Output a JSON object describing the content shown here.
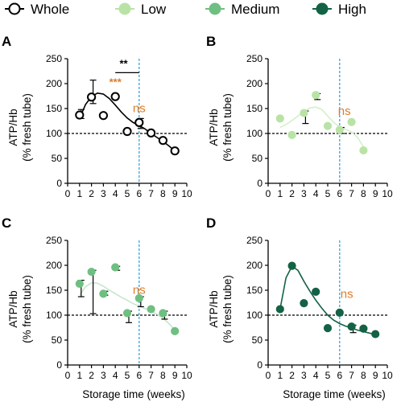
{
  "legend": [
    {
      "label": "Whole",
      "color": "#000000",
      "hollow": true
    },
    {
      "label": "Low",
      "color": "#b9e3a6",
      "hollow": false
    },
    {
      "label": "Medium",
      "color": "#6fbf82",
      "hollow": false
    },
    {
      "label": "High",
      "color": "#146245",
      "hollow": false
    }
  ],
  "colors": {
    "ns": "#e07b28",
    "vline": "#3aa6d8",
    "ref": "#000000"
  },
  "chart_data": [
    {
      "panel": "A",
      "type": "scatter",
      "series": "Whole",
      "color": "#000000",
      "hollow": true,
      "ylabel_line1": "ATP/Hb",
      "ylabel_line2": "(% fresh tube)",
      "xlabel": "",
      "xlim": [
        0,
        10
      ],
      "ylim": [
        0,
        250
      ],
      "xticks": [
        "0",
        "1",
        "2",
        "3",
        "4",
        "5",
        "6",
        "7",
        "8",
        "9",
        "10"
      ],
      "yticks": [
        "0",
        "50",
        "100",
        "150",
        "200",
        "250"
      ],
      "points": [
        {
          "x": 1,
          "y": 137,
          "err": [
            130,
            148
          ]
        },
        {
          "x": 2,
          "y": 173,
          "err": [
            160,
            207
          ]
        },
        {
          "x": 3,
          "y": 136
        },
        {
          "x": 4,
          "y": 174
        },
        {
          "x": 5,
          "y": 104
        },
        {
          "x": 6,
          "y": 122,
          "err": [
            110,
            130
          ]
        },
        {
          "x": 7,
          "y": 101
        },
        {
          "x": 8,
          "y": 86
        },
        {
          "x": 9,
          "y": 65
        }
      ],
      "fit": [
        [
          1,
          130
        ],
        [
          1.5,
          158
        ],
        [
          2,
          174
        ],
        [
          2.5,
          181
        ],
        [
          3,
          179
        ],
        [
          3.5,
          170
        ],
        [
          4,
          157
        ],
        [
          4.5,
          143
        ],
        [
          5,
          131
        ],
        [
          5.5,
          122
        ],
        [
          6,
          116
        ],
        [
          6.5,
          109
        ],
        [
          7,
          100
        ],
        [
          7.5,
          92
        ],
        [
          8,
          84
        ],
        [
          8.5,
          75
        ],
        [
          9,
          65
        ]
      ],
      "fit_color": "#000000",
      "ref_y": 100,
      "vline_x": 6,
      "annotations": [
        {
          "text": "ns",
          "x": 6,
          "y": 143,
          "kind": "ns"
        },
        {
          "text": "***",
          "x": 4,
          "y": 196,
          "kind": "sig"
        },
        {
          "text": "**",
          "x": 4.7,
          "y": 233,
          "kind": "sig2"
        }
      ],
      "bracket": {
        "x1": 4,
        "x2": 6,
        "y": 222
      }
    },
    {
      "panel": "B",
      "type": "scatter",
      "series": "Low",
      "color": "#b9e3a6",
      "hollow": false,
      "ylabel_line1": "ATP/Hb",
      "ylabel_line2": "(% fresh tube)",
      "xlabel": "",
      "xlim": [
        0,
        10
      ],
      "ylim": [
        0,
        250
      ],
      "xticks": [
        "0",
        "1",
        "2",
        "3",
        "4",
        "5",
        "6",
        "7",
        "8",
        "9",
        "10"
      ],
      "yticks": [
        "0",
        "50",
        "100",
        "150",
        "200",
        "250"
      ],
      "points": [
        {
          "x": 1,
          "y": 130
        },
        {
          "x": 2,
          "y": 97
        },
        {
          "x": 3,
          "y": 141,
          "err": [
            120,
            145
          ]
        },
        {
          "x": 4,
          "y": 177,
          "err": [
            168,
            180
          ]
        },
        {
          "x": 5,
          "y": 115
        },
        {
          "x": 6,
          "y": 107,
          "err": [
            100,
            112
          ]
        },
        {
          "x": 7,
          "y": 123
        },
        {
          "x": 8,
          "y": 66
        }
      ],
      "fit": [
        [
          1,
          112
        ],
        [
          1.5,
          118
        ],
        [
          2,
          126
        ],
        [
          2.5,
          135
        ],
        [
          3,
          144
        ],
        [
          3.5,
          151
        ],
        [
          4,
          153
        ],
        [
          4.5,
          148
        ],
        [
          5,
          135
        ],
        [
          5.5,
          122
        ],
        [
          6,
          113
        ],
        [
          6.5,
          108
        ],
        [
          7,
          103
        ],
        [
          7.5,
          92
        ],
        [
          8,
          73
        ]
      ],
      "fit_color": "#d6efca",
      "ref_y": 100,
      "vline_x": 6,
      "annotations": [
        {
          "text": "ns",
          "x": 6.4,
          "y": 137,
          "kind": "ns"
        }
      ]
    },
    {
      "panel": "C",
      "type": "scatter",
      "series": "Medium",
      "color": "#6fbf82",
      "hollow": false,
      "ylabel_line1": "ATP/Hb",
      "ylabel_line2": "(% fresh tube)",
      "xlabel": "Storage time (weeks)",
      "xlim": [
        0,
        10
      ],
      "ylim": [
        0,
        250
      ],
      "xticks": [
        "0",
        "1",
        "2",
        "3",
        "4",
        "5",
        "6",
        "7",
        "8",
        "9",
        "10"
      ],
      "yticks": [
        "0",
        "50",
        "100",
        "150",
        "200",
        "250"
      ],
      "points": [
        {
          "x": 1,
          "y": 163,
          "err": [
            137,
            170
          ]
        },
        {
          "x": 2,
          "y": 187,
          "err": [
            103,
            190
          ]
        },
        {
          "x": 3,
          "y": 143,
          "err": [
            140,
            148
          ]
        },
        {
          "x": 4,
          "y": 196,
          "err": [
            190,
            198
          ]
        },
        {
          "x": 5,
          "y": 104,
          "err": [
            85,
            108
          ]
        },
        {
          "x": 6,
          "y": 134,
          "err": [
            117,
            137
          ]
        },
        {
          "x": 7,
          "y": 112
        },
        {
          "x": 8,
          "y": 104,
          "err": [
            92,
            108
          ]
        },
        {
          "x": 9,
          "y": 68
        }
      ],
      "fit": [
        [
          1,
          140
        ],
        [
          1.5,
          157
        ],
        [
          2,
          165
        ],
        [
          2.5,
          164
        ],
        [
          3,
          158
        ],
        [
          3.5,
          150
        ],
        [
          4,
          143
        ],
        [
          4.5,
          136
        ],
        [
          5,
          130
        ],
        [
          5.5,
          123
        ],
        [
          6,
          118
        ],
        [
          6.5,
          113
        ],
        [
          7,
          108
        ],
        [
          7.5,
          102
        ],
        [
          8,
          94
        ],
        [
          8.5,
          83
        ],
        [
          9,
          70
        ]
      ],
      "fit_color": "#c7e6cc",
      "ref_y": 100,
      "vline_x": 6,
      "annotations": [
        {
          "text": "ns",
          "x": 6,
          "y": 143,
          "kind": "ns"
        }
      ]
    },
    {
      "panel": "D",
      "type": "scatter",
      "series": "High",
      "color": "#146245",
      "hollow": false,
      "ylabel_line1": "ATP/Hb",
      "ylabel_line2": "(% fresh tube)",
      "xlabel": "Storage time (weeks)",
      "xlim": [
        0,
        10
      ],
      "ylim": [
        0,
        250
      ],
      "xticks": [
        "0",
        "1",
        "2",
        "3",
        "4",
        "5",
        "6",
        "7",
        "8",
        "9",
        "10"
      ],
      "yticks": [
        "0",
        "50",
        "100",
        "150",
        "200",
        "250"
      ],
      "points": [
        {
          "x": 1,
          "y": 112
        },
        {
          "x": 2,
          "y": 199
        },
        {
          "x": 3,
          "y": 124
        },
        {
          "x": 4,
          "y": 147
        },
        {
          "x": 5,
          "y": 74
        },
        {
          "x": 6,
          "y": 105
        },
        {
          "x": 7,
          "y": 77,
          "err": [
            65,
            80
          ]
        },
        {
          "x": 8,
          "y": 73
        },
        {
          "x": 9,
          "y": 62
        }
      ],
      "fit": [
        [
          1,
          112
        ],
        [
          1.5,
          175
        ],
        [
          2,
          198
        ],
        [
          2.5,
          190
        ],
        [
          3,
          168
        ],
        [
          3.5,
          148
        ],
        [
          4,
          130
        ],
        [
          4.5,
          114
        ],
        [
          5,
          100
        ],
        [
          5.5,
          90
        ],
        [
          6,
          83
        ],
        [
          6.5,
          78
        ],
        [
          7,
          74
        ],
        [
          7.5,
          70
        ],
        [
          8,
          67
        ],
        [
          8.5,
          64
        ],
        [
          9,
          61
        ]
      ],
      "fit_color": "#146245",
      "ref_y": 100,
      "vline_x": 6,
      "annotations": [
        {
          "text": "ns",
          "x": 6.6,
          "y": 135,
          "kind": "ns"
        }
      ]
    }
  ]
}
